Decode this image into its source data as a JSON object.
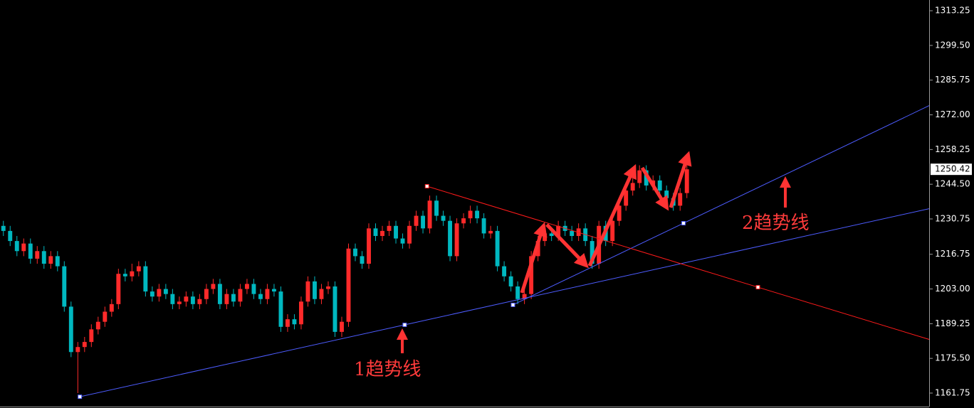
{
  "chart_data": {
    "type": "candlestick",
    "up_color": "#ff2a2a",
    "down_color": "#00b8c0",
    "xlim": [
      -0.5,
      136.8
    ],
    "ylim": [
      1156.4,
      1317.5
    ],
    "yticks": [
      1161.75,
      {
        "value": 1175.5,
        "label": "1175.50"
      },
      1189.25,
      {
        "value": 1203,
        "label": "1203.00"
      },
      1216.75,
      1230.75,
      {
        "value": 1244.5,
        "label": "1244.50"
      },
      1258.25,
      {
        "value": 1272,
        "label": "1272.00"
      },
      1285.75,
      {
        "value": 1299.5,
        "label": "1299.50"
      },
      1313.25
    ],
    "current_price": {
      "value": 1250.42,
      "label": "1250.42"
    },
    "open": [
      1228,
      1226,
      1222,
      1218,
      1221,
      1215,
      1218,
      1213,
      1216,
      1212,
      1196,
      1178,
      1180,
      1182,
      1187,
      1190,
      1194,
      1197,
      1209,
      1208,
      1210,
      1212,
      1202,
      1200,
      1203,
      1201,
      1197,
      1198,
      1200,
      1197,
      1199,
      1203,
      1205,
      1197,
      1201,
      1198,
      1203,
      1205,
      1201,
      1199,
      1203,
      1202,
      1188,
      1191,
      1189,
      1198,
      1206,
      1199,
      1203,
      1204,
      1186,
      1190,
      1219,
      1216,
      1213,
      1227,
      1224,
      1226,
      1228,
      1223,
      1221,
      1228,
      1232,
      1227,
      1238,
      1232,
      1230,
      1216,
      1229,
      1231,
      1234,
      1231,
      1225,
      1226,
      1212,
      1208,
      1204,
      1199,
      1201,
      1216,
      1222,
      1225,
      1224,
      1228,
      1226,
      1224,
      1227,
      1222,
      1213,
      1228,
      1222,
      1230,
      1236,
      1242,
      1245,
      1250,
      1244,
      1246,
      1242,
      1239,
      1236,
      1241
    ],
    "high": [
      1230,
      1228,
      1224,
      1223,
      1223,
      1220,
      1220,
      1218,
      1218,
      1214,
      1198,
      1182,
      1184,
      1189,
      1192,
      1196,
      1199,
      1211,
      1211,
      1213,
      1214,
      1214,
      1204,
      1205,
      1205,
      1203,
      1200,
      1202,
      1202,
      1201,
      1205,
      1207,
      1207,
      1203,
      1203,
      1205,
      1207,
      1207,
      1203,
      1205,
      1205,
      1204,
      1193,
      1193,
      1200,
      1208,
      1208,
      1205,
      1206,
      1206,
      1192,
      1221,
      1221,
      1218,
      1229,
      1229,
      1228,
      1230,
      1230,
      1225,
      1230,
      1234,
      1234,
      1240,
      1240,
      1234,
      1232,
      1231,
      1233,
      1236,
      1236,
      1233,
      1228,
      1228,
      1214,
      1210,
      1206,
      1203,
      1218,
      1224,
      1227,
      1227,
      1230,
      1230,
      1228,
      1229,
      1229,
      1224,
      1230,
      1230,
      1232,
      1238,
      1244,
      1247,
      1252,
      1252,
      1248,
      1248,
      1244,
      1241,
      1243,
      1252
    ],
    "low": [
      1224,
      1220,
      1216,
      1216,
      1213,
      1213,
      1211,
      1211,
      1210,
      1194,
      1176,
      1161.75,
      1178,
      1180,
      1185,
      1188,
      1192,
      1195,
      1206,
      1206,
      1208,
      1200,
      1198,
      1198,
      1199,
      1195,
      1195,
      1196,
      1195,
      1195,
      1197,
      1201,
      1195,
      1195,
      1196,
      1196,
      1201,
      1199,
      1197,
      1197,
      1200,
      1186,
      1186,
      1187,
      1187,
      1196,
      1197,
      1197,
      1201,
      1184,
      1184,
      1188,
      1214,
      1211,
      1211,
      1222,
      1222,
      1224,
      1221,
      1219,
      1219,
      1226,
      1225,
      1225,
      1230,
      1228,
      1214,
      1214,
      1227,
      1229,
      1229,
      1223,
      1223,
      1210,
      1206,
      1202,
      1197,
      1197,
      1199,
      1214,
      1220,
      1222,
      1222,
      1224,
      1222,
      1222,
      1220,
      1211,
      1211,
      1220,
      1220,
      1228,
      1234,
      1240,
      1243,
      1242,
      1242,
      1240,
      1237,
      1234,
      1234,
      1239
    ],
    "close": [
      1226,
      1222,
      1218,
      1221,
      1215,
      1218,
      1213,
      1216,
      1212,
      1196,
      1178,
      1180,
      1182,
      1187,
      1190,
      1194,
      1197,
      1209,
      1208,
      1210,
      1212,
      1202,
      1200,
      1203,
      1201,
      1197,
      1198,
      1200,
      1197,
      1199,
      1203,
      1205,
      1197,
      1201,
      1198,
      1203,
      1205,
      1201,
      1199,
      1203,
      1202,
      1188,
      1191,
      1189,
      1198,
      1206,
      1199,
      1203,
      1204,
      1186,
      1190,
      1219,
      1216,
      1213,
      1227,
      1224,
      1226,
      1228,
      1223,
      1221,
      1228,
      1232,
      1227,
      1238,
      1232,
      1230,
      1216,
      1229,
      1231,
      1234,
      1231,
      1225,
      1226,
      1212,
      1208,
      1204,
      1199,
      1201,
      1216,
      1222,
      1225,
      1224,
      1228,
      1226,
      1224,
      1227,
      1222,
      1213,
      1228,
      1222,
      1230,
      1236,
      1242,
      1245,
      1250,
      1244,
      1246,
      1242,
      1239,
      1236,
      1241,
      1250.42
    ],
    "trendlines": [
      {
        "name": "1趋势线",
        "color": "#4d5cff",
        "x": [
          11.3,
          59.3
        ],
        "y": [
          1160.3,
          1188.8
        ]
      },
      {
        "name": "2趋势线",
        "color": "#4d5cff",
        "x": [
          75.3,
          100.5
        ],
        "y": [
          1196.7,
          1229.05
        ]
      },
      {
        "color": "#ff1a1a",
        "x": [
          62.6,
          111.5
        ],
        "y": [
          1243.7,
          1203.7
        ]
      }
    ]
  }
}
